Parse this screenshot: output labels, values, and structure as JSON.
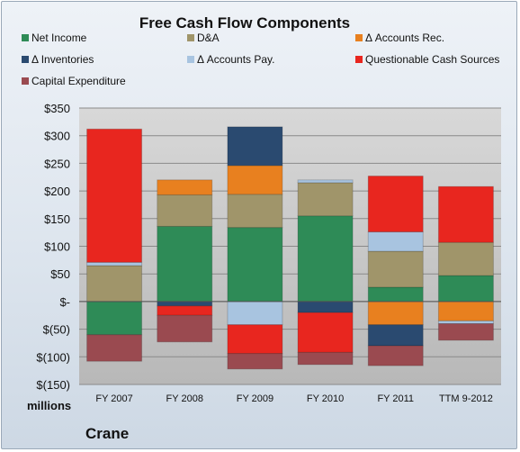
{
  "chart_data": {
    "type": "bar",
    "stacked": true,
    "title": "Free Cash Flow Components",
    "categories": [
      "FY 2007",
      "FY 2008",
      "FY 2009",
      "FY 2010",
      "FY 2011",
      "TTM 9-2012"
    ],
    "y_ticks": [
      "$350",
      "$300",
      "$250",
      "$200",
      "$150",
      "$100",
      "$50",
      "$-",
      "$(50)",
      "$(100)",
      "$(150)"
    ],
    "ylim": [
      -150,
      350
    ],
    "units_label": "millions",
    "company": "Crane",
    "legend_placement": "top",
    "series": [
      {
        "name": "Net Income",
        "color": "#2e8b57",
        "values": [
          -60,
          136,
          134,
          155,
          26,
          47
        ]
      },
      {
        "name": "D&A",
        "color": "#a0956a",
        "values": [
          65,
          57,
          60,
          60,
          65,
          60
        ]
      },
      {
        "name": "Δ Accounts Rec.",
        "color": "#e8801f",
        "values": [
          0,
          27,
          52,
          0,
          -42,
          -35
        ]
      },
      {
        "name": "Δ Inventories",
        "color": "#2a4a70",
        "values": [
          0,
          -8,
          70,
          -20,
          -38,
          0
        ]
      },
      {
        "name": "Δ Accounts Pay.",
        "color": "#a8c4e0",
        "values": [
          6,
          0,
          -42,
          5,
          35,
          -5
        ]
      },
      {
        "name": "Questionable Cash Sources",
        "color": "#e8261f",
        "values": [
          241,
          -17,
          -52,
          -72,
          101,
          101
        ]
      },
      {
        "name": "Capital Expenditure",
        "color": "#9a4a50",
        "values": [
          -48,
          -48,
          -28,
          -22,
          -36,
          -30
        ]
      }
    ]
  }
}
